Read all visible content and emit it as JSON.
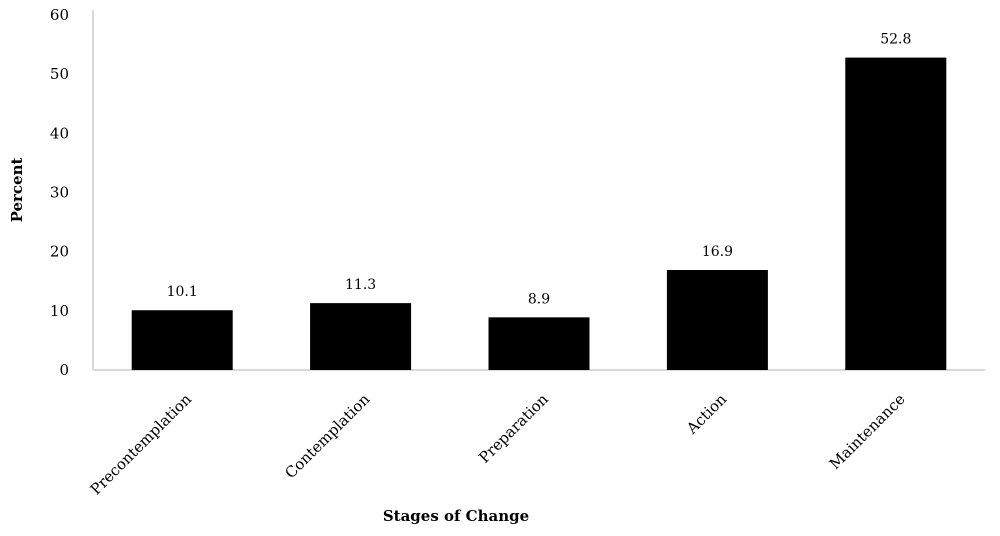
{
  "chart_data": {
    "type": "bar",
    "title": "",
    "xlabel": "Stages of Change",
    "ylabel": "Percent",
    "categories": [
      "Precontemplation",
      "Contemplation",
      "Preparation",
      "Action",
      "Maintenance"
    ],
    "values": [
      10.1,
      11.3,
      8.9,
      16.9,
      52.8
    ],
    "data_labels": [
      "10.1",
      "11.3",
      "8.9",
      "16.9",
      "52.8"
    ],
    "ylim": [
      0,
      60
    ],
    "yticks": [
      0,
      10,
      20,
      30,
      40,
      50,
      60
    ],
    "grid": false,
    "legend": "none",
    "colors": {
      "bar": "#000000",
      "axis": "#d9d9d9"
    }
  }
}
